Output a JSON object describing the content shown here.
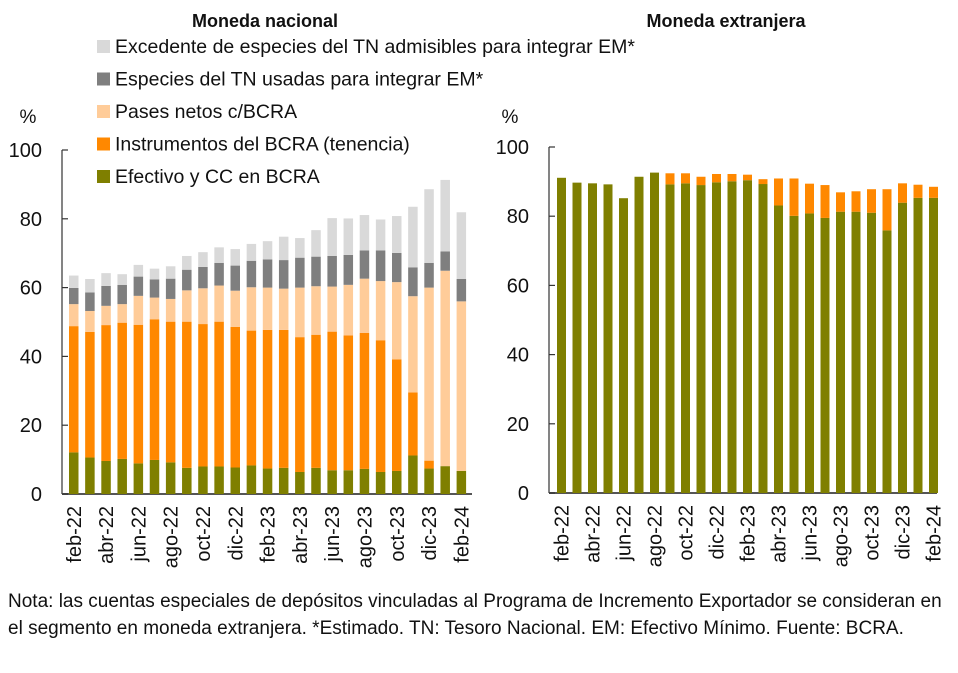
{
  "chart_data": [
    {
      "type": "bar",
      "stacked": true,
      "title": "Moneda nacional",
      "ylabel": "%",
      "xlabel": "",
      "ylim": [
        0,
        100
      ],
      "yticks": [
        0,
        20,
        40,
        60,
        80,
        100
      ],
      "grid": false,
      "legend_position": "top",
      "categories": [
        "feb-22",
        "mar-22",
        "abr-22",
        "may-22",
        "jun-22",
        "jul-22",
        "ago-22",
        "sep-22",
        "oct-22",
        "nov-22",
        "dic-22",
        "ene-23",
        "feb-23",
        "mar-23",
        "abr-23",
        "may-23",
        "jun-23",
        "jul-23",
        "ago-23",
        "sep-23",
        "oct-23",
        "nov-23",
        "dic-23",
        "ene-24",
        "feb-24"
      ],
      "tick_labels": [
        "feb-22",
        "abr-22",
        "jun-22",
        "ago-22",
        "oct-22",
        "dic-22",
        "feb-23",
        "abr-23",
        "jun-23",
        "ago-23",
        "oct-23",
        "dic-23",
        "feb-24"
      ],
      "series": [
        {
          "name": "Efectivo y CC en BCRA",
          "color": "#7f7f00",
          "values": [
            12.1,
            10.6,
            9.6,
            10.2,
            8.9,
            9.9,
            9.2,
            7.6,
            8.0,
            8.0,
            7.7,
            8.3,
            7.4,
            7.6,
            6.4,
            7.6,
            6.9,
            6.9,
            7.3,
            6.4,
            6.7,
            11.2,
            7.4,
            8.1,
            6.7
          ]
        },
        {
          "name": "Instrumentos del BCRA (tenencia)",
          "color": "#ff8800",
          "values": [
            36.7,
            36.5,
            39.5,
            39.6,
            40.3,
            40.9,
            40.9,
            42.5,
            41.4,
            42.1,
            40.9,
            39.2,
            40.3,
            40.1,
            39.2,
            38.7,
            40.3,
            39.2,
            39.5,
            38.3,
            32.4,
            18.3,
            2.3,
            0.0,
            0.0
          ]
        },
        {
          "name": "Pases netos c/BCRA",
          "color": "#ffcc99",
          "values": [
            6.4,
            6.1,
            5.6,
            5.4,
            8.4,
            6.3,
            6.6,
            9.1,
            10.4,
            10.5,
            10.5,
            12.6,
            12.3,
            12.0,
            14.4,
            14.1,
            13.1,
            14.7,
            15.8,
            17.2,
            22.5,
            28.0,
            50.3,
            56.8,
            49.3
          ]
        },
        {
          "name": "Especies del TN usadas para integrar EM*",
          "color": "#7f7f7f",
          "values": [
            4.7,
            5.4,
            5.8,
            5.6,
            5.6,
            5.3,
            5.9,
            6.0,
            6.2,
            6.6,
            7.3,
            7.7,
            8.2,
            8.3,
            8.7,
            8.6,
            8.9,
            8.7,
            8.2,
            8.9,
            8.5,
            8.4,
            7.2,
            5.6,
            6.5
          ]
        },
        {
          "name": "Excedente de especies del TN admisibles para integrar EM*",
          "color": "#d9d9d9",
          "values": [
            3.6,
            3.9,
            3.7,
            3.1,
            3.4,
            3.1,
            3.6,
            4.0,
            4.3,
            4.5,
            4.8,
            4.9,
            5.3,
            6.8,
            5.7,
            7.7,
            11.0,
            10.6,
            10.3,
            9.0,
            10.7,
            17.6,
            21.4,
            20.8,
            19.4
          ]
        }
      ]
    },
    {
      "type": "bar",
      "stacked": true,
      "title": "Moneda extranjera",
      "ylabel": "%",
      "xlabel": "",
      "ylim": [
        0,
        100
      ],
      "yticks": [
        0,
        20,
        40,
        60,
        80,
        100
      ],
      "grid": false,
      "categories": [
        "feb-22",
        "mar-22",
        "abr-22",
        "may-22",
        "jun-22",
        "jul-22",
        "ago-22",
        "sep-22",
        "oct-22",
        "nov-22",
        "dic-22",
        "ene-23",
        "feb-23",
        "mar-23",
        "abr-23",
        "may-23",
        "jun-23",
        "jul-23",
        "ago-23",
        "sep-23",
        "oct-23",
        "nov-23",
        "dic-23",
        "ene-24",
        "feb-24"
      ],
      "tick_labels": [
        "feb-22",
        "abr-22",
        "jun-22",
        "ago-22",
        "oct-22",
        "dic-22",
        "feb-23",
        "abr-23",
        "jun-23",
        "ago-23",
        "oct-23",
        "dic-23",
        "feb-24"
      ],
      "series": [
        {
          "name": "Efectivo y CC en BCRA",
          "color": "#7f7f00",
          "values": [
            91.1,
            89.7,
            89.5,
            89.2,
            85.2,
            91.4,
            92.6,
            89.2,
            89.5,
            89.0,
            89.8,
            90.1,
            90.4,
            89.3,
            83.1,
            80.1,
            80.8,
            79.5,
            81.3,
            81.3,
            81.0,
            75.9,
            83.9,
            85.3,
            85.3
          ]
        },
        {
          "name": "Instrumentos del BCRA (tenencia)",
          "color": "#ff8800",
          "values": [
            0,
            0,
            0,
            0,
            0,
            0,
            0,
            3.2,
            2.9,
            2.4,
            2.4,
            2.1,
            1.6,
            1.4,
            7.8,
            10.8,
            8.6,
            9.5,
            5.6,
            5.9,
            6.8,
            11.9,
            5.6,
            3.8,
            3.2
          ]
        }
      ]
    }
  ],
  "legend": [
    {
      "label": "Excedente de especies del TN admisibles para integrar EM*",
      "color": "#d9d9d9"
    },
    {
      "label": "Especies del TN usadas para integrar EM*",
      "color": "#7f7f7f"
    },
    {
      "label": "Pases netos c/BCRA",
      "color": "#ffcc99"
    },
    {
      "label": "Instrumentos del BCRA (tenencia)",
      "color": "#ff8800"
    },
    {
      "label": "Efectivo y CC en BCRA",
      "color": "#7f7f00"
    }
  ],
  "note": "Nota: las cuentas especiales de depósitos vinculadas al Programa de Incremento Exportador se consideran en el segmento en moneda extranjera. *Estimado. TN: Tesoro Nacional. EM: Efectivo Mínimo. Fuente: BCRA."
}
